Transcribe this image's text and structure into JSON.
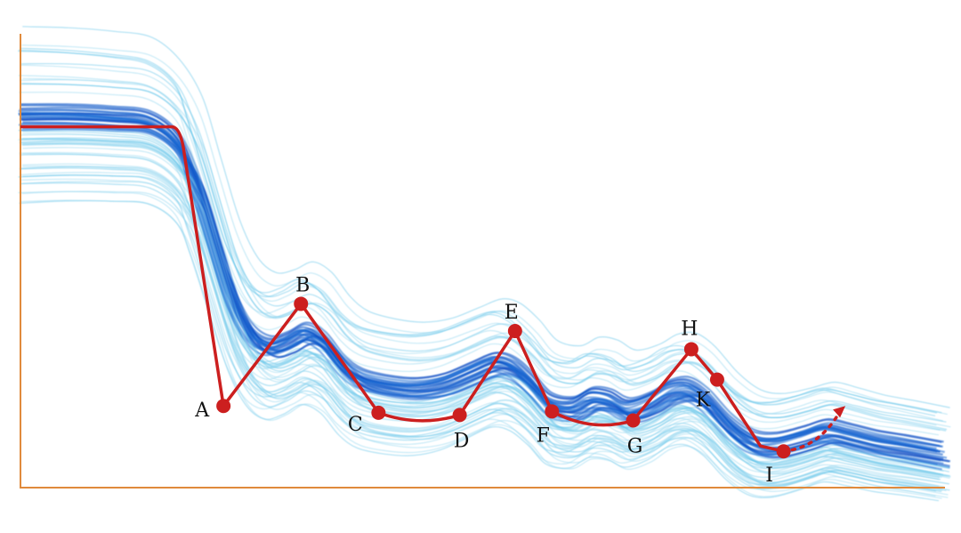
{
  "chart_data": {
    "type": "line",
    "title": "",
    "xlabel": "",
    "ylabel": "",
    "xlim": [
      0,
      100
    ],
    "ylim": [
      0,
      100
    ],
    "grid": false,
    "axis_color": "#e08a3c",
    "colors": {
      "path": "#cc1f1f",
      "band_dark": "#0b4fc4",
      "band_light": "#5fc4ea"
    },
    "path_start": [
      [
        0,
        79.5
      ],
      [
        16.4,
        79.5
      ]
    ],
    "points": [
      {
        "label": "A",
        "x": 22.0,
        "y": 18.0
      },
      {
        "label": "B",
        "x": 30.4,
        "y": 40.5
      },
      {
        "label": "C",
        "x": 38.8,
        "y": 16.5
      },
      {
        "label": "D",
        "x": 47.6,
        "y": 16.0
      },
      {
        "label": "E",
        "x": 53.6,
        "y": 34.5
      },
      {
        "label": "F",
        "x": 57.6,
        "y": 16.8
      },
      {
        "label": "G",
        "x": 66.4,
        "y": 14.8
      },
      {
        "label": "H",
        "x": 72.7,
        "y": 30.5
      },
      {
        "label": "K",
        "x": 75.5,
        "y": 23.8
      },
      {
        "label": "I",
        "x": 82.7,
        "y": 8.0
      }
    ],
    "path_end_arrow": [
      [
        82.7,
        8.0
      ],
      [
        89.4,
        18.0
      ]
    ],
    "ensemble_center": [
      [
        0,
        82
      ],
      [
        5,
        82
      ],
      [
        10,
        81.5
      ],
      [
        14,
        80.5
      ],
      [
        17,
        76
      ],
      [
        19,
        68
      ],
      [
        21,
        55
      ],
      [
        23,
        42
      ],
      [
        25,
        34
      ],
      [
        27,
        31
      ],
      [
        29,
        32
      ],
      [
        31,
        34
      ],
      [
        33,
        32
      ],
      [
        35,
        27
      ],
      [
        37,
        24
      ],
      [
        40,
        22.5
      ],
      [
        43,
        22
      ],
      [
        46,
        23
      ],
      [
        49,
        25.5
      ],
      [
        51.5,
        27.5
      ],
      [
        53.5,
        26.5
      ],
      [
        55.5,
        23
      ],
      [
        57.5,
        18.5
      ],
      [
        60,
        17.5
      ],
      [
        62,
        19.5
      ],
      [
        64,
        19
      ],
      [
        66,
        17
      ],
      [
        68.5,
        18.5
      ],
      [
        70.5,
        21
      ],
      [
        72.5,
        21.5
      ],
      [
        74.5,
        19
      ],
      [
        77,
        13.5
      ],
      [
        79.5,
        10
      ],
      [
        82,
        9.5
      ],
      [
        85,
        11
      ],
      [
        87.5,
        12.5
      ],
      [
        90,
        11.5
      ],
      [
        93,
        10
      ],
      [
        96,
        9
      ],
      [
        100,
        7.5
      ]
    ],
    "ensemble_count": 70
  }
}
